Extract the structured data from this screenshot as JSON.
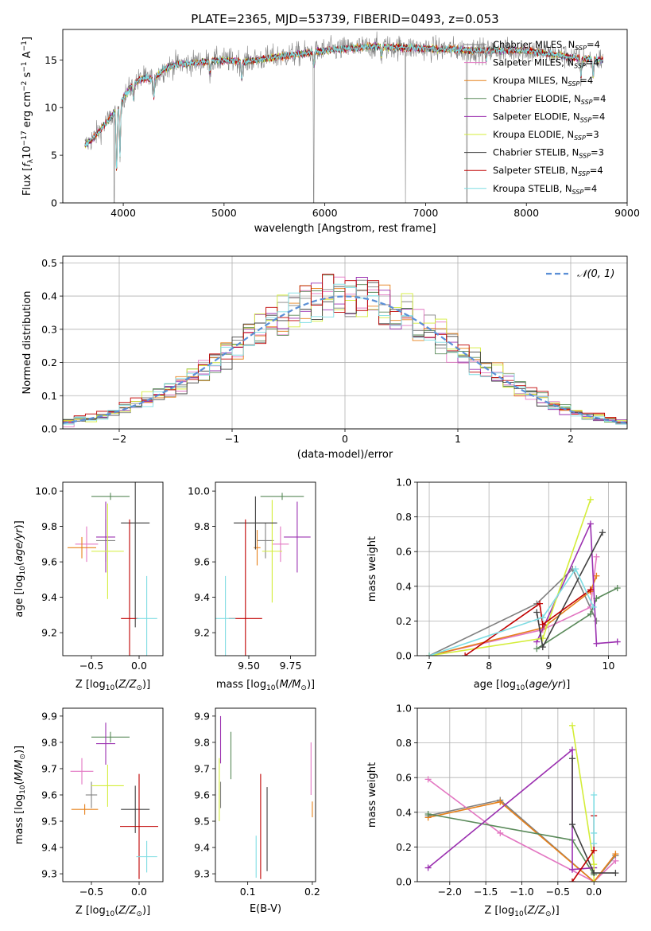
{
  "title": "PLATE=2365, MJD=53739, FIBERID=0493, z=0.053",
  "models": [
    {
      "label": "Chabrier MILES, N$_{SSP}$=4",
      "label_main": "Chabrier MILES, N",
      "label_sub": "SSP",
      "label_tail": "=4",
      "color": "#808080"
    },
    {
      "label": "Salpeter MILES, N$_{SSP}$=4",
      "label_main": "Salpeter MILES, N",
      "label_sub": "SSP",
      "label_tail": "=4",
      "color": "#e377c2"
    },
    {
      "label": "Kroupa MILES, N$_{SSP}$=4",
      "label_main": "Kroupa MILES, N",
      "label_sub": "SSP",
      "label_tail": "=4",
      "color": "#e6801a"
    },
    {
      "label": "Chabrier ELODIE, N$_{SSP}$=4",
      "label_main": "Chabrier ELODIE, N",
      "label_sub": "SSP",
      "label_tail": "=4",
      "color": "#5a8a5a"
    },
    {
      "label": "Salpeter ELODIE, N$_{SSP}$=4",
      "label_main": "Salpeter ELODIE, N",
      "label_sub": "SSP",
      "label_tail": "=4",
      "color": "#9b30b0"
    },
    {
      "label": "Kroupa ELODIE, N$_{SSP}$=3",
      "label_main": "Kroupa ELODIE, N",
      "label_sub": "SSP",
      "label_tail": "=3",
      "color": "#d4ed3a"
    },
    {
      "label": "Chabrier STELIB, N$_{SSP}$=3",
      "label_main": "Chabrier STELIB, N",
      "label_sub": "SSP",
      "label_tail": "=3",
      "color": "#404040"
    },
    {
      "label": "Salpeter STELIB, N$_{SSP}$=4",
      "label_main": "Salpeter STELIB, N",
      "label_sub": "SSP",
      "label_tail": "=4",
      "color": "#c00000"
    },
    {
      "label": "Kroupa STELIB, N$_{SSP}$=4",
      "label_main": "Kroupa STELIB, N",
      "label_sub": "SSP",
      "label_tail": "=4",
      "color": "#7fdde3"
    }
  ],
  "chart_data": [
    {
      "panel": "spectrum",
      "type": "line",
      "xlabel": "wavelength [Angstrom, rest frame]",
      "ylabel": "Flux [f$_\\lambda$10$^{-17}$ erg cm$^{-2}$ s$^{-1}$ A$^{-1}$]",
      "xlim": [
        3400,
        9000
      ],
      "ylim": [
        0,
        18.2
      ],
      "xticks": [
        4000,
        5000,
        6000,
        7000,
        8000,
        9000
      ],
      "yticks": [
        0,
        5,
        10,
        15
      ],
      "legend": "right",
      "continuum_points": [
        [
          3620,
          6.0
        ],
        [
          3700,
          6.8
        ],
        [
          3800,
          8.0
        ],
        [
          3900,
          9.3
        ],
        [
          4000,
          11.0
        ],
        [
          4100,
          12.5
        ],
        [
          4200,
          13.1
        ],
        [
          4300,
          13.0
        ],
        [
          4400,
          14.0
        ],
        [
          4500,
          14.5
        ],
        [
          4700,
          14.7
        ],
        [
          5000,
          15.0
        ],
        [
          5200,
          14.8
        ],
        [
          5500,
          15.3
        ],
        [
          5800,
          15.7
        ],
        [
          6000,
          16.0
        ],
        [
          6500,
          16.4
        ],
        [
          7000,
          16.2
        ],
        [
          7500,
          16.0
        ],
        [
          8000,
          16.0
        ],
        [
          8500,
          15.2
        ],
        [
          8750,
          15.0
        ]
      ],
      "absorption_features": [
        [
          3934,
          6.5
        ],
        [
          3968,
          5.5
        ],
        [
          4101,
          1.5
        ],
        [
          4304,
          2.0
        ],
        [
          4861,
          1.2
        ],
        [
          5175,
          1.8
        ],
        [
          5893,
          1.5
        ],
        [
          6563,
          1.0
        ],
        [
          7600,
          1.0
        ],
        [
          8542,
          2.0
        ],
        [
          8662,
          1.8
        ]
      ],
      "data_dropouts_x": [
        3910,
        5890,
        6800,
        7410
      ]
    },
    {
      "panel": "residuals",
      "type": "histogram",
      "xlabel": "(data-model)/error",
      "ylabel": "Normed distribution",
      "xlim": [
        -2.5,
        2.5
      ],
      "ylim": [
        0,
        0.52
      ],
      "xticks": [
        -2,
        -1,
        0,
        1,
        2
      ],
      "yticks": [
        0,
        0.1,
        0.2,
        0.3,
        0.4,
        0.5
      ],
      "bin_width": 0.1,
      "reference_curve": {
        "label": "$\\mathcal{N}(0,1)$",
        "label_text": "𝒩(0, 1)",
        "color": "#5b8fd6",
        "style": "dashed"
      },
      "legend": "top-right",
      "grid": true
    },
    {
      "panel": "age_vs_Z",
      "type": "errorbar",
      "xlabel": "Z [log$_{10}$(Z/Z$_\\odot$)]",
      "ylabel": "age  [log$_{10}$(age/yr)]",
      "xlim": [
        -0.8,
        0.25
      ],
      "ylim": [
        9.07,
        10.05
      ],
      "xticks": [
        -0.5,
        0.0
      ],
      "yticks": [
        9.2,
        9.4,
        9.6,
        9.8,
        10.0
      ],
      "points": [
        {
          "model": 0,
          "x": -0.35,
          "xerr": 0.1,
          "y": 9.72,
          "yerr": 0.12
        },
        {
          "model": 1,
          "x": -0.55,
          "xerr": 0.12,
          "y": 9.7,
          "yerr": 0.1
        },
        {
          "model": 2,
          "x": -0.6,
          "xerr": 0.15,
          "y": 9.68,
          "yerr": 0.06
        },
        {
          "model": 3,
          "x": -0.3,
          "xerr": 0.2,
          "y": 9.97,
          "yerr": 0.02
        },
        {
          "model": 4,
          "x": -0.35,
          "xerr": 0.1,
          "y": 9.74,
          "yerr": 0.2
        },
        {
          "model": 5,
          "x": -0.33,
          "xerr": 0.17,
          "y": 9.66,
          "yerr": 0.27
        },
        {
          "model": 6,
          "x": -0.04,
          "xerr": 0.15,
          "y": 9.82,
          "yerr": 0.59
        },
        {
          "model": 7,
          "x": -0.1,
          "xerr": 0.09,
          "y": 9.28,
          "yerr": 0.56
        },
        {
          "model": 8,
          "x": 0.08,
          "xerr": 0.11,
          "y": 9.28,
          "yerr": 0.24
        }
      ]
    },
    {
      "panel": "age_vs_mass",
      "type": "errorbar",
      "xlabel": "mass [log$_{10}$(M/M$_\\odot$)]",
      "ylabel": "",
      "xlim": [
        9.3,
        9.9
      ],
      "ylim": [
        9.07,
        10.05
      ],
      "xticks": [
        9.5,
        9.75
      ],
      "yticks": [
        9.2,
        9.4,
        9.6,
        9.8,
        10.0
      ],
      "points": [
        {
          "model": 0,
          "x": 9.6,
          "xerr": 0.05,
          "y": 9.72,
          "yerr": 0.1
        },
        {
          "model": 1,
          "x": 9.69,
          "xerr": 0.05,
          "y": 9.7,
          "yerr": 0.1
        },
        {
          "model": 2,
          "x": 9.55,
          "xerr": 0.02,
          "y": 9.68,
          "yerr": 0.1
        },
        {
          "model": 3,
          "x": 9.7,
          "xerr": 0.13,
          "y": 9.97,
          "yerr": 0.02
        },
        {
          "model": 4,
          "x": 9.79,
          "xerr": 0.08,
          "y": 9.74,
          "yerr": 0.2
        },
        {
          "model": 5,
          "x": 9.64,
          "xerr": 0.06,
          "y": 9.66,
          "yerr": 0.29
        },
        {
          "model": 6,
          "x": 9.54,
          "xerr": 0.13,
          "y": 9.82,
          "yerr": 0.15
        },
        {
          "model": 7,
          "x": 9.48,
          "xerr": 0.1,
          "y": 9.28,
          "yerr": 0.56
        },
        {
          "model": 8,
          "x": 9.36,
          "xerr": 0.06,
          "y": 9.28,
          "yerr": 0.24
        }
      ]
    },
    {
      "panel": "mass_weight_vs_age",
      "type": "line",
      "xlabel": "age  [log$_{10}$(age/yr)]",
      "ylabel": "mass weight",
      "xlim": [
        6.8,
        10.3
      ],
      "ylim": [
        0,
        1.0
      ],
      "xticks": [
        7,
        8,
        9,
        10
      ],
      "yticks": [
        0,
        0.2,
        0.4,
        0.6,
        0.8,
        1.0
      ],
      "grid": true,
      "series": [
        {
          "model": 0,
          "x": [
            7.0,
            8.8,
            9.4,
            9.8
          ],
          "y": [
            0.0,
            0.3,
            0.5,
            0.2
          ]
        },
        {
          "model": 1,
          "x": [
            7.0,
            8.9,
            9.7,
            9.8
          ],
          "y": [
            0.0,
            0.15,
            0.28,
            0.57
          ]
        },
        {
          "model": 2,
          "x": [
            7.0,
            8.9,
            9.7,
            9.8
          ],
          "y": [
            0.0,
            0.16,
            0.37,
            0.46
          ]
        },
        {
          "model": 3,
          "x": [
            8.8,
            9.7,
            9.8,
            10.15
          ],
          "y": [
            0.04,
            0.24,
            0.33,
            0.39
          ]
        },
        {
          "model": 4,
          "x": [
            8.8,
            9.7,
            9.8,
            10.15
          ],
          "y": [
            0.08,
            0.76,
            0.07,
            0.08
          ]
        },
        {
          "model": 5,
          "x": [
            7.0,
            8.9,
            9.7
          ],
          "y": [
            0.0,
            0.1,
            0.9
          ]
        },
        {
          "model": 6,
          "x": [
            8.8,
            8.9,
            9.9
          ],
          "y": [
            0.25,
            0.05,
            0.71
          ]
        },
        {
          "model": 7,
          "x": [
            7.6,
            8.85,
            8.9,
            9.7
          ],
          "y": [
            0.0,
            0.3,
            0.18,
            0.38
          ]
        },
        {
          "model": 8,
          "x": [
            7.0,
            8.9,
            9.45,
            9.75
          ],
          "y": [
            0.0,
            0.22,
            0.5,
            0.28
          ]
        }
      ]
    },
    {
      "panel": "mass_vs_Z",
      "type": "errorbar",
      "xlabel": "Z [log$_{10}$(Z/Z$_\\odot$)]",
      "ylabel": "mass [log$_{10}$(M/M$_\\odot$)]",
      "xlim": [
        -0.8,
        0.25
      ],
      "ylim": [
        9.27,
        9.93
      ],
      "xticks": [
        -0.5,
        0.0
      ],
      "yticks": [
        9.3,
        9.4,
        9.5,
        9.6,
        9.7,
        9.8,
        9.9
      ],
      "points": [
        {
          "model": 0,
          "x": -0.5,
          "xerr": 0.06,
          "y": 9.6,
          "yerr": 0.05
        },
        {
          "model": 1,
          "x": -0.6,
          "xerr": 0.12,
          "y": 9.69,
          "yerr": 0.05
        },
        {
          "model": 2,
          "x": -0.57,
          "xerr": 0.14,
          "y": 9.545,
          "yerr": 0.02
        },
        {
          "model": 3,
          "x": -0.3,
          "xerr": 0.2,
          "y": 9.82,
          "yerr": 0.02
        },
        {
          "model": 4,
          "x": -0.35,
          "xerr": 0.1,
          "y": 9.795,
          "yerr": 0.08
        },
        {
          "model": 5,
          "x": -0.33,
          "xerr": 0.17,
          "y": 9.635,
          "yerr": 0.08
        },
        {
          "model": 6,
          "x": -0.04,
          "xerr": 0.15,
          "y": 9.545,
          "yerr": 0.09
        },
        {
          "model": 7,
          "x": 0.0,
          "xerr": 0.2,
          "y": 9.48,
          "yerr": 0.2
        },
        {
          "model": 8,
          "x": 0.08,
          "xerr": 0.11,
          "y": 9.365,
          "yerr": 0.06
        }
      ]
    },
    {
      "panel": "mass_vs_EBV",
      "type": "errorbar",
      "xlabel": "E(B-V)",
      "ylabel": "",
      "xlim": [
        0.05,
        0.205
      ],
      "ylim": [
        9.27,
        9.93
      ],
      "xticks": [
        0.1,
        0.2
      ],
      "yticks": [
        9.3,
        9.4,
        9.5,
        9.6,
        9.7,
        9.8,
        9.9
      ],
      "points": [
        {
          "model": 0,
          "x": 0.058,
          "y": 9.6,
          "yerr": 0.05
        },
        {
          "model": 1,
          "x": 0.198,
          "y": 9.7,
          "yerr": 0.1
        },
        {
          "model": 2,
          "x": 0.2,
          "y": 9.545,
          "yerr": 0.03
        },
        {
          "model": 3,
          "x": 0.074,
          "y": 9.75,
          "yerr": 0.09
        },
        {
          "model": 4,
          "x": 0.058,
          "y": 9.81,
          "yerr": 0.09
        },
        {
          "model": 5,
          "x": 0.056,
          "y": 9.62,
          "yerr": 0.12
        },
        {
          "model": 6,
          "x": 0.13,
          "y": 9.47,
          "yerr": 0.16
        },
        {
          "model": 7,
          "x": 0.12,
          "y": 9.48,
          "yerr": 0.2
        },
        {
          "model": 8,
          "x": 0.113,
          "y": 9.365,
          "yerr": 0.08
        }
      ]
    },
    {
      "panel": "mass_weight_vs_Z",
      "type": "line",
      "xlabel": "Z [log$_{10}$(Z/Z$_\\odot$)]",
      "ylabel": "mass weight",
      "xlim": [
        -2.45,
        0.45
      ],
      "ylim": [
        0,
        1.0
      ],
      "xticks": [
        -2.0,
        -1.5,
        -1.0,
        -0.5,
        0.0
      ],
      "yticks": [
        0,
        0.2,
        0.4,
        0.6,
        0.8,
        1.0
      ],
      "grid": true,
      "series": [
        {
          "model": 0,
          "x": [
            -2.3,
            -1.3,
            0.0,
            0.3
          ],
          "y": [
            0.38,
            0.47,
            0.0,
            0.15
          ]
        },
        {
          "model": 1,
          "x": [
            -2.3,
            -1.3,
            0.0,
            0.3
          ],
          "y": [
            0.59,
            0.28,
            0.0,
            0.12
          ]
        },
        {
          "model": 2,
          "x": [
            -2.3,
            -1.3,
            0.0,
            0.3
          ],
          "y": [
            0.37,
            0.46,
            0.0,
            0.16
          ]
        },
        {
          "model": 3,
          "x": [
            -2.3,
            -0.3,
            0.0
          ],
          "y": [
            0.39,
            0.24,
            0.04
          ]
        },
        {
          "model": 4,
          "x": [
            -2.3,
            -0.3,
            -0.3,
            0.0
          ],
          "y": [
            0.08,
            0.76,
            0.07,
            0.08
          ]
        },
        {
          "model": 5,
          "x": [
            -0.3,
            0.0,
            0.0
          ],
          "y": [
            0.9,
            0.1,
            0.0
          ]
        },
        {
          "model": 6,
          "x": [
            -0.3,
            -0.3,
            0.0,
            0.3
          ],
          "y": [
            0.71,
            0.33,
            0.05,
            0.05
          ]
        },
        {
          "model": 7,
          "x": [
            -0.3,
            0.0,
            0.0
          ],
          "y": [
            0.0,
            0.18,
            0.38
          ]
        },
        {
          "model": 8,
          "x": [
            0.0,
            0.0,
            0.0
          ],
          "y": [
            0.5,
            0.22,
            0.28
          ]
        }
      ]
    }
  ]
}
